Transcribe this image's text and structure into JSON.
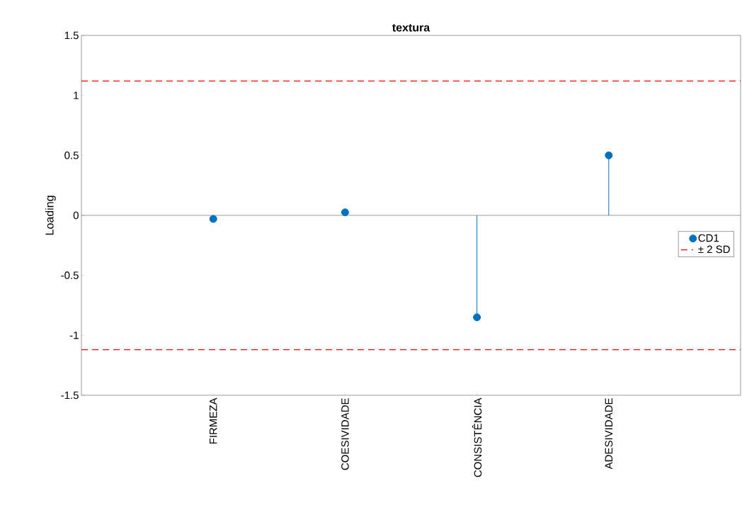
{
  "chart_data": {
    "type": "lollipop",
    "title": "textura",
    "ylabel": "Loading",
    "categories": [
      "FIRMEZA",
      "COESIVIDADE",
      "CONSISTÊNCIA",
      "ADESIVIDADE"
    ],
    "series": [
      {
        "name": "CD1",
        "color": "#0072bd",
        "values": [
          -0.03,
          0.025,
          -0.85,
          0.5
        ]
      }
    ],
    "ylim": [
      -1.5,
      1.5
    ],
    "yticks": [
      -1.5,
      -1,
      -0.5,
      0,
      0.5,
      1,
      1.5
    ],
    "ref_lines": [
      {
        "axis": "y",
        "value": 1.12,
        "label": "± 2 SD",
        "color": "#ff0000",
        "line_style": "dashed"
      },
      {
        "axis": "y",
        "value": -1.12,
        "color": "#ff0000",
        "line_style": "dashed"
      }
    ],
    "legend": "right",
    "marker": "circle"
  }
}
